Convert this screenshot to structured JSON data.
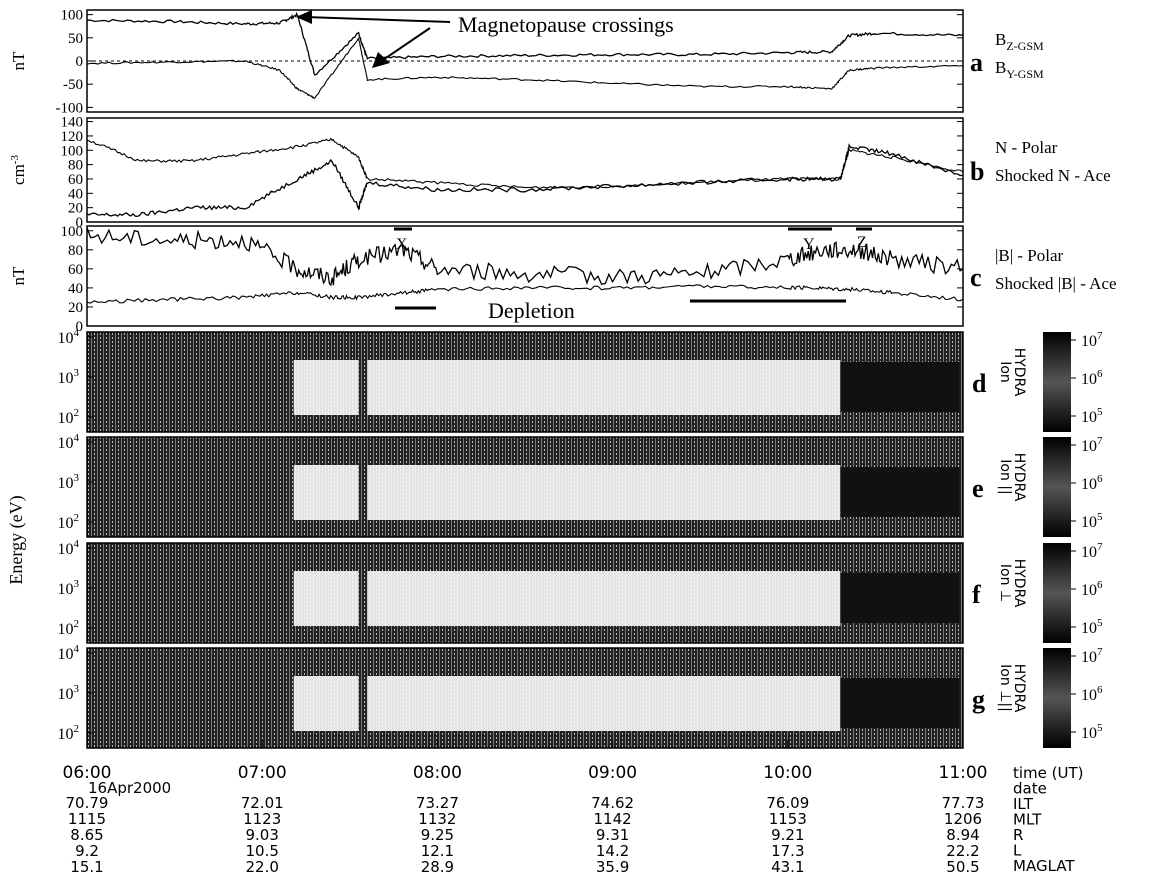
{
  "figure": {
    "annotation_title": "Magnetopause crossings",
    "depletion_label": "Depletion",
    "interval_marks": [
      "X",
      "Y",
      "Z"
    ]
  },
  "panels": [
    {
      "id": "a",
      "letter": "a",
      "ylabel": "nT",
      "ticks": [
        "100",
        "50",
        "0",
        "-50",
        "-100"
      ],
      "legend": [
        {
          "main": "B",
          "sub": "Z-GSM"
        },
        {
          "main": "B",
          "sub": "Y-GSM"
        }
      ]
    },
    {
      "id": "b",
      "letter": "b",
      "ylabel": "cm",
      "ylabel_sup": "-3",
      "ticks": [
        "140",
        "120",
        "100",
        "80",
        "60",
        "40",
        "20",
        "0"
      ],
      "legend": [
        {
          "main": "N - Polar",
          "sub": ""
        },
        {
          "main": "Shocked N - Ace",
          "sub": ""
        }
      ]
    },
    {
      "id": "c",
      "letter": "c",
      "ylabel": "nT",
      "ticks": [
        "100",
        "80",
        "60",
        "40",
        "20",
        "0"
      ],
      "legend": [
        {
          "main": "|B| - Polar",
          "sub": ""
        },
        {
          "main": "Shocked |B| - Ace",
          "sub": ""
        }
      ]
    }
  ],
  "spectrograms": {
    "ylabel": "Energy (eV)",
    "yticks": [
      {
        "base": "10",
        "exp": "4"
      },
      {
        "base": "10",
        "exp": "3"
      },
      {
        "base": "10",
        "exp": "2"
      }
    ],
    "cbar_ticks": [
      {
        "base": "10",
        "exp": "7"
      },
      {
        "base": "10",
        "exp": "6"
      },
      {
        "base": "10",
        "exp": "5"
      }
    ],
    "panels": [
      {
        "letter": "d",
        "label_line1": "HYDRA",
        "label_line2": "Ion"
      },
      {
        "letter": "e",
        "label_line1": "HYDRA",
        "label_line2": "Ion ||"
      },
      {
        "letter": "f",
        "label_line1": "HYDRA",
        "label_line2": "Ion ⊥"
      },
      {
        "letter": "g",
        "label_line1": "HYDRA",
        "label_line2": "Ion ⊥||"
      }
    ]
  },
  "footer": {
    "times": [
      "06:00",
      "07:00",
      "08:00",
      "09:00",
      "10:00",
      "11:00"
    ],
    "date": "16Apr2000",
    "rows": {
      "ILT": [
        "70.79",
        "72.01",
        "73.27",
        "74.62",
        "76.09",
        "77.73"
      ],
      "MLT": [
        "1115",
        "1123",
        "1132",
        "1142",
        "1153",
        "1206"
      ],
      "R": [
        "8.65",
        "9.03",
        "9.25",
        "9.31",
        "9.21",
        "8.94"
      ],
      "L": [
        "9.2",
        "10.5",
        "12.1",
        "14.2",
        "17.3",
        "22.2"
      ],
      "MAGLAT": [
        "15.1",
        "22.0",
        "28.9",
        "35.9",
        "43.1",
        "50.5"
      ]
    },
    "row_labels": [
      "time (UT)",
      "date",
      "ILT",
      "MLT",
      "R",
      "L",
      "MAGLAT"
    ]
  },
  "chart_data": {
    "type": "line",
    "x": [
      "06:00",
      "07:00",
      "08:00",
      "09:00",
      "10:00",
      "11:00"
    ],
    "xlabel": "time (UT)",
    "panels": [
      {
        "panel": "a",
        "ylabel": "nT",
        "ylim": [
          -110,
          110
        ],
        "series": [
          {
            "name": "B_Z-GSM",
            "t": [
              6.0,
              6.5,
              6.9,
              7.1,
              7.2,
              7.3,
              7.55,
              7.6,
              8.0,
              8.5,
              9.0,
              9.5,
              10.0,
              10.25,
              10.35,
              10.5,
              11.0
            ],
            "values": [
              88,
              85,
              80,
              82,
              100,
              -30,
              60,
              5,
              10,
              12,
              14,
              14,
              18,
              20,
              55,
              60,
              55
            ]
          },
          {
            "name": "B_Y-GSM",
            "t": [
              6.0,
              6.5,
              6.9,
              7.1,
              7.2,
              7.3,
              7.55,
              7.6,
              8.0,
              8.5,
              9.0,
              9.5,
              10.0,
              10.25,
              10.35,
              10.5,
              11.0
            ],
            "values": [
              -5,
              -2,
              0,
              -20,
              -60,
              -80,
              50,
              -40,
              -35,
              -40,
              -48,
              -55,
              -55,
              -60,
              -20,
              -15,
              -10
            ]
          }
        ]
      },
      {
        "panel": "b",
        "ylabel": "cm-3",
        "ylim": [
          0,
          145
        ],
        "series": [
          {
            "name": "N - Polar",
            "t": [
              6.0,
              6.3,
              6.6,
              6.9,
              7.2,
              7.4,
              7.55,
              7.6,
              8.0,
              8.5,
              9.0,
              9.5,
              10.0,
              10.3,
              10.35,
              10.6,
              11.0
            ],
            "values": [
              10,
              10,
              20,
              20,
              60,
              85,
              20,
              55,
              45,
              45,
              50,
              55,
              60,
              60,
              105,
              95,
              65
            ]
          },
          {
            "name": "Shocked N - Ace",
            "t": [
              6.0,
              6.3,
              6.6,
              6.9,
              7.2,
              7.4,
              7.55,
              7.6,
              8.0,
              8.5,
              9.0,
              9.5,
              10.0,
              10.3,
              10.35,
              10.6,
              11.0
            ],
            "values": [
              115,
              85,
              85,
              95,
              105,
              115,
              90,
              60,
              55,
              48,
              50,
              55,
              60,
              60,
              100,
              90,
              70
            ]
          }
        ]
      },
      {
        "panel": "c",
        "ylabel": "nT",
        "ylim": [
          0,
          105
        ],
        "series": [
          {
            "name": "|B| - Polar",
            "t": [
              6.0,
              6.5,
              6.9,
              7.2,
              7.4,
              7.55,
              7.8,
              8.0,
              8.5,
              9.0,
              9.5,
              10.0,
              10.2,
              10.4,
              10.6,
              11.0
            ],
            "values": [
              95,
              90,
              90,
              60,
              50,
              70,
              80,
              60,
              55,
              52,
              55,
              70,
              80,
              80,
              70,
              60
            ]
          },
          {
            "name": "Shocked |B| - Ace",
            "t": [
              6.0,
              6.5,
              6.9,
              7.2,
              7.4,
              7.55,
              7.8,
              8.0,
              8.5,
              9.0,
              9.5,
              10.0,
              10.2,
              10.4,
              10.6,
              11.0
            ],
            "values": [
              25,
              28,
              30,
              35,
              30,
              30,
              35,
              38,
              40,
              40,
              42,
              40,
              40,
              38,
              35,
              28
            ]
          }
        ]
      }
    ]
  }
}
